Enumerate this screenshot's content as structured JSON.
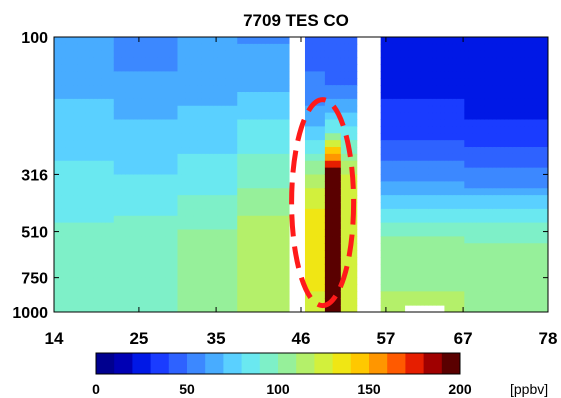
{
  "chart_data": {
    "type": "heatmap",
    "title": "7709 TES CO",
    "xlabel": "",
    "ylabel": "",
    "x_ticks": [
      14,
      25,
      35,
      46,
      57,
      67,
      78
    ],
    "y_ticks": [
      100,
      316,
      510,
      750,
      1000
    ],
    "xlim": [
      14,
      78
    ],
    "ylim": [
      1000,
      100
    ],
    "y_scale": "log",
    "grid": false,
    "colorbar": {
      "label": "[ppbv]",
      "min": 0,
      "max": 200,
      "ticks": [
        0,
        50,
        100,
        150,
        200
      ],
      "levels": 20,
      "colors": [
        "#00008f",
        "#0000b4",
        "#0018e6",
        "#1a3cff",
        "#2e62ff",
        "#3c88ff",
        "#48acff",
        "#5ad0ff",
        "#6ae8f0",
        "#7ef0c8",
        "#96f09a",
        "#b4f06a",
        "#d2f03c",
        "#f0e614",
        "#ffc800",
        "#ff9600",
        "#ff5a00",
        "#e61e00",
        "#a00000",
        "#5a0000"
      ]
    },
    "annotations": [
      {
        "type": "ellipse",
        "style": "dashed",
        "color": "#ff1a1a",
        "x_center": 48.8,
        "pressure_center": 400
      }
    ],
    "data_gaps": [
      {
        "x": [
          44.2,
          46.6
        ],
        "pressure": [
          100,
          1000
        ]
      },
      {
        "x": [
          53.0,
          56.4
        ],
        "pressure": [
          100,
          1000
        ]
      },
      {
        "x": [
          59.6,
          64.6
        ],
        "pressure": [
          930,
          1000
        ]
      }
    ],
    "profiles": [
      {
        "x_range": [
          14,
          22
        ],
        "ppbv": [
          62,
          68,
          75,
          82,
          88,
          92,
          96,
          100
        ]
      },
      {
        "x_range": [
          22,
          30
        ],
        "ppbv": [
          55,
          62,
          72,
          80,
          88,
          94,
          98,
          100
        ]
      },
      {
        "x_range": [
          30,
          38
        ],
        "ppbv": [
          60,
          66,
          75,
          85,
          94,
          100,
          103,
          105
        ]
      },
      {
        "x_range": [
          38,
          46
        ],
        "ppbv": [
          58,
          68,
          82,
          96,
          108,
          115,
          118,
          120
        ]
      },
      {
        "x_range": [
          46,
          49
        ],
        "ppbv": [
          45,
          52,
          70,
          110,
          130,
          135,
          132,
          128
        ]
      },
      {
        "x_range": [
          49,
          51
        ],
        "ppbv": [
          40,
          48,
          85,
          200,
          200,
          200,
          200,
          200
        ]
      },
      {
        "x_range": [
          51,
          53
        ],
        "ppbv": [
          42,
          50,
          80,
          120,
          130,
          128,
          126,
          125
        ]
      },
      {
        "x_range": [
          56,
          67
        ],
        "ppbv": [
          25,
          28,
          35,
          55,
          80,
          98,
          108,
          112
        ]
      },
      {
        "x_range": [
          67,
          78
        ],
        "ppbv": [
          22,
          25,
          32,
          52,
          78,
          96,
          106,
          110
        ]
      }
    ],
    "profile_pressure_levels": [
      100,
      150,
      215,
      316,
      420,
      510,
      680,
      1000
    ]
  }
}
